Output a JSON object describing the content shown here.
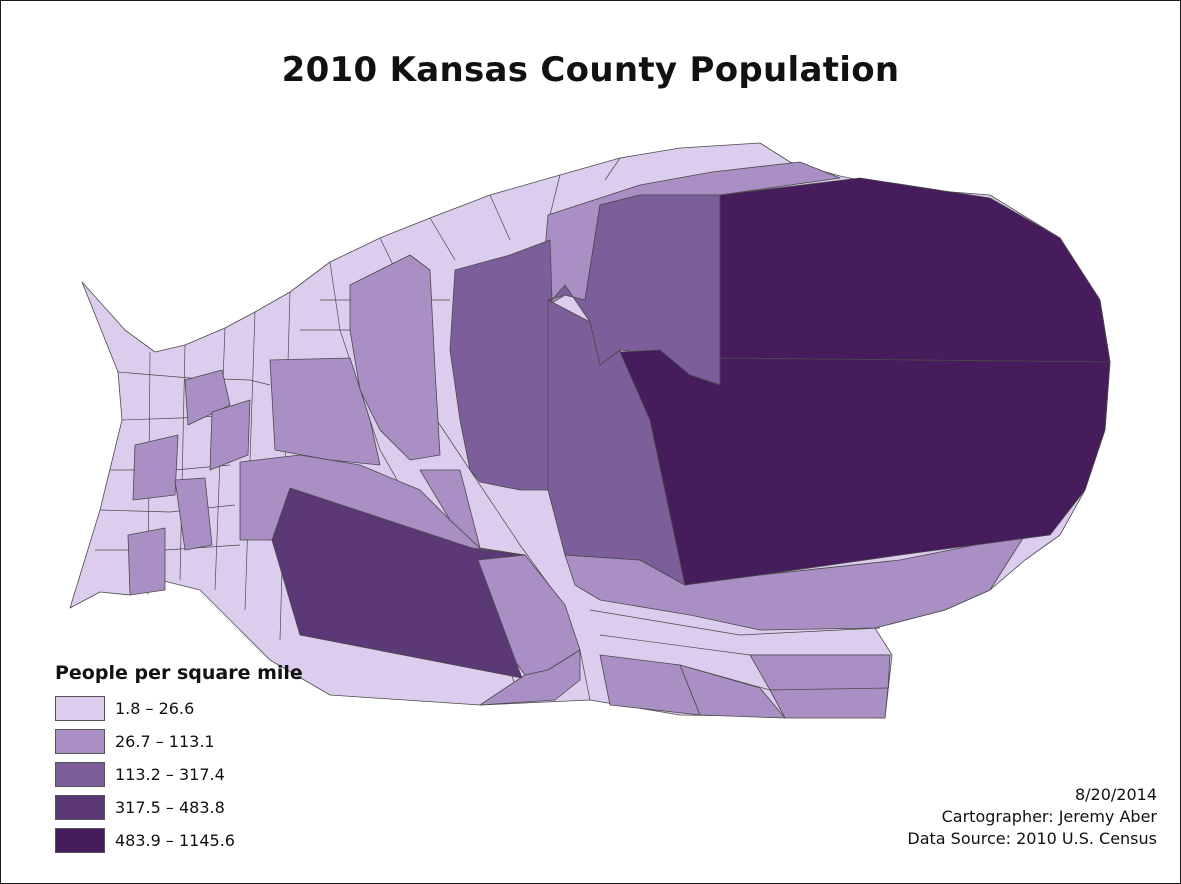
{
  "map": {
    "title": "2010 Kansas County Population",
    "legend": {
      "title": "People per square mile",
      "classes": [
        {
          "label": "1.8 – 26.6",
          "color": "#dccdee"
        },
        {
          "label": "26.7 – 113.1",
          "color": "#a98fc4"
        },
        {
          "label": "113.2 – 317.4",
          "color": "#7c5e9b"
        },
        {
          "label": "317.5 – 483.8",
          "color": "#5b3876"
        },
        {
          "label": "483.9 – 1145.6",
          "color": "#461c5c"
        }
      ]
    },
    "credits": {
      "date": "8/20/2014",
      "cartographer": "Cartographer: Jeremy Aber",
      "source": "Data Source: 2010 U.S. Census"
    },
    "colors": {
      "border": "#4a4a4a",
      "background": "#ffffff"
    }
  }
}
